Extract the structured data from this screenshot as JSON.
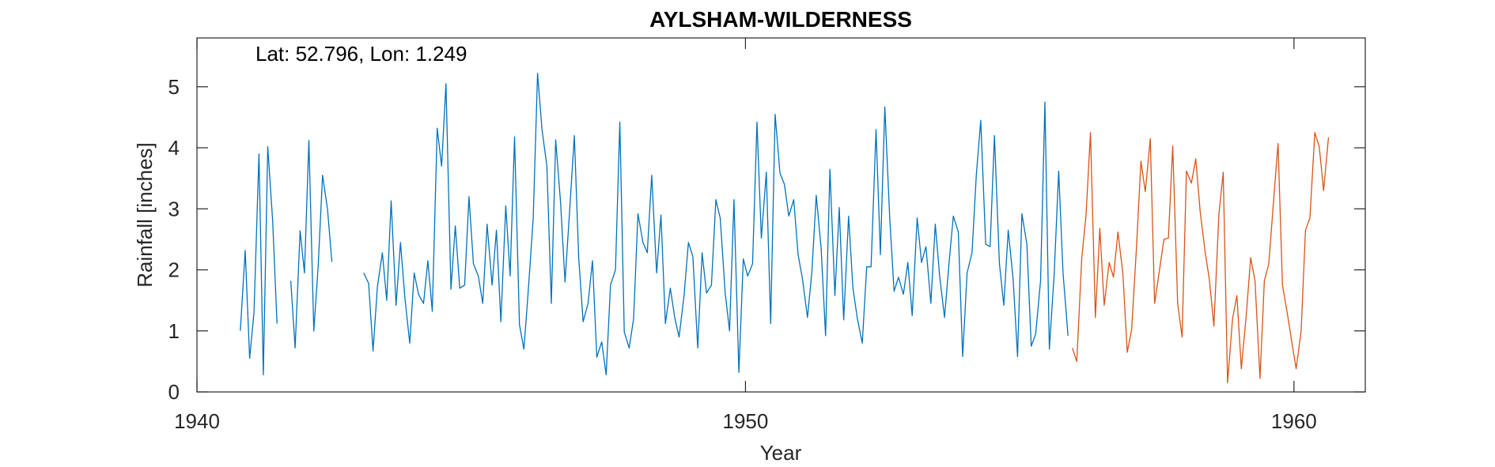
{
  "chart_data": {
    "type": "line",
    "title": "AYLSHAM-WILDERNESS",
    "annotation": "Lat: 52.796, Lon: 1.249",
    "xlabel": "Year",
    "ylabel": "Rainfall [inches]",
    "xlim": [
      1940,
      1961.3
    ],
    "ylim": [
      0,
      5.8
    ],
    "xticks": [
      1940,
      1950,
      1960
    ],
    "yticks": [
      0,
      1,
      2,
      3,
      4,
      5
    ],
    "grid": false,
    "series": [
      {
        "color": "#0072BD",
        "segments": [
          [
            [
              1940.79,
              1.0
            ],
            [
              1940.88,
              2.32
            ],
            [
              1940.96,
              0.55
            ],
            [
              1941.04,
              1.3
            ],
            [
              1941.13,
              3.9
            ],
            [
              1941.21,
              0.28
            ],
            [
              1941.29,
              4.02
            ],
            [
              1941.38,
              2.8
            ],
            [
              1941.46,
              1.12
            ]
          ],
          [
            [
              1941.71,
              1.82
            ],
            [
              1941.79,
              0.72
            ],
            [
              1941.88,
              2.64
            ],
            [
              1941.96,
              1.95
            ],
            [
              1942.04,
              4.12
            ],
            [
              1942.13,
              1.0
            ],
            [
              1942.21,
              2.05
            ],
            [
              1942.29,
              3.55
            ],
            [
              1942.38,
              3.0
            ],
            [
              1942.46,
              2.13
            ]
          ],
          [
            [
              1943.04,
              1.95
            ],
            [
              1943.13,
              1.78
            ],
            [
              1943.21,
              0.67
            ],
            [
              1943.29,
              1.72
            ],
            [
              1943.38,
              2.28
            ],
            [
              1943.46,
              1.5
            ],
            [
              1943.54,
              3.13
            ],
            [
              1943.63,
              1.42
            ],
            [
              1943.71,
              2.45
            ],
            [
              1943.79,
              1.55
            ],
            [
              1943.88,
              0.8
            ],
            [
              1943.96,
              1.95
            ],
            [
              1944.04,
              1.6
            ],
            [
              1944.13,
              1.45
            ],
            [
              1944.21,
              2.15
            ],
            [
              1944.29,
              1.32
            ],
            [
              1944.38,
              4.32
            ],
            [
              1944.46,
              3.7
            ],
            [
              1944.54,
              5.05
            ],
            [
              1944.63,
              1.68
            ],
            [
              1944.71,
              2.72
            ],
            [
              1944.79,
              1.7
            ],
            [
              1944.88,
              1.75
            ],
            [
              1944.96,
              3.2
            ],
            [
              1945.04,
              2.1
            ],
            [
              1945.13,
              1.9
            ],
            [
              1945.21,
              1.45
            ],
            [
              1945.29,
              2.75
            ],
            [
              1945.38,
              1.75
            ],
            [
              1945.46,
              2.65
            ],
            [
              1945.54,
              1.15
            ],
            [
              1945.63,
              3.05
            ],
            [
              1945.71,
              1.9
            ],
            [
              1945.79,
              4.18
            ],
            [
              1945.88,
              1.1
            ],
            [
              1945.96,
              0.7
            ],
            [
              1946.04,
              1.65
            ],
            [
              1946.13,
              2.85
            ],
            [
              1946.21,
              5.22
            ],
            [
              1946.29,
              4.3
            ],
            [
              1946.38,
              3.7
            ],
            [
              1946.46,
              1.45
            ],
            [
              1946.54,
              4.13
            ],
            [
              1946.63,
              3.1
            ],
            [
              1946.71,
              1.8
            ],
            [
              1946.79,
              2.9
            ],
            [
              1946.88,
              4.2
            ],
            [
              1946.96,
              2.2
            ],
            [
              1947.04,
              1.15
            ],
            [
              1947.13,
              1.45
            ],
            [
              1947.21,
              2.15
            ],
            [
              1947.29,
              0.57
            ],
            [
              1947.38,
              0.82
            ],
            [
              1947.46,
              0.28
            ],
            [
              1947.54,
              1.75
            ],
            [
              1947.63,
              2.0
            ],
            [
              1947.71,
              4.42
            ],
            [
              1947.79,
              0.98
            ],
            [
              1947.88,
              0.72
            ],
            [
              1947.96,
              1.2
            ],
            [
              1948.04,
              2.92
            ],
            [
              1948.13,
              2.45
            ],
            [
              1948.21,
              2.28
            ],
            [
              1948.29,
              3.55
            ],
            [
              1948.38,
              1.95
            ],
            [
              1948.46,
              2.9
            ],
            [
              1948.54,
              1.12
            ],
            [
              1948.63,
              1.7
            ],
            [
              1948.71,
              1.22
            ],
            [
              1948.79,
              0.9
            ],
            [
              1948.88,
              1.58
            ],
            [
              1948.96,
              2.45
            ],
            [
              1949.04,
              2.22
            ],
            [
              1949.13,
              0.72
            ],
            [
              1949.21,
              2.28
            ],
            [
              1949.29,
              1.62
            ],
            [
              1949.38,
              1.75
            ],
            [
              1949.46,
              3.15
            ],
            [
              1949.54,
              2.85
            ],
            [
              1949.63,
              1.62
            ],
            [
              1949.71,
              1.0
            ],
            [
              1949.79,
              3.15
            ],
            [
              1949.88,
              0.32
            ],
            [
              1949.96,
              2.18
            ],
            [
              1950.04,
              1.9
            ],
            [
              1950.13,
              2.1
            ],
            [
              1950.21,
              4.42
            ],
            [
              1950.29,
              2.52
            ],
            [
              1950.38,
              3.6
            ],
            [
              1950.46,
              1.12
            ],
            [
              1950.54,
              4.55
            ],
            [
              1950.63,
              3.58
            ],
            [
              1950.71,
              3.4
            ],
            [
              1950.79,
              2.88
            ],
            [
              1950.88,
              3.15
            ],
            [
              1950.96,
              2.25
            ],
            [
              1951.04,
              1.85
            ],
            [
              1951.13,
              1.22
            ],
            [
              1951.21,
              1.95
            ],
            [
              1951.29,
              3.22
            ],
            [
              1951.38,
              2.35
            ],
            [
              1951.46,
              0.92
            ],
            [
              1951.54,
              3.65
            ],
            [
              1951.63,
              1.58
            ],
            [
              1951.71,
              3.02
            ],
            [
              1951.79,
              1.18
            ],
            [
              1951.88,
              2.88
            ],
            [
              1951.96,
              1.7
            ],
            [
              1952.04,
              1.2
            ],
            [
              1952.13,
              0.8
            ],
            [
              1952.21,
              2.05
            ],
            [
              1952.29,
              2.05
            ],
            [
              1952.38,
              4.3
            ],
            [
              1952.46,
              2.25
            ],
            [
              1952.54,
              4.67
            ],
            [
              1952.63,
              2.85
            ],
            [
              1952.71,
              1.65
            ],
            [
              1952.79,
              1.88
            ],
            [
              1952.88,
              1.6
            ],
            [
              1952.96,
              2.12
            ],
            [
              1953.04,
              1.25
            ],
            [
              1953.13,
              2.85
            ],
            [
              1953.21,
              2.12
            ],
            [
              1953.29,
              2.38
            ],
            [
              1953.38,
              1.45
            ],
            [
              1953.46,
              2.75
            ],
            [
              1953.54,
              1.9
            ],
            [
              1953.63,
              1.22
            ],
            [
              1953.71,
              2.1
            ],
            [
              1953.79,
              2.88
            ],
            [
              1953.88,
              2.62
            ],
            [
              1953.96,
              0.58
            ],
            [
              1954.04,
              1.95
            ],
            [
              1954.13,
              2.28
            ],
            [
              1954.21,
              3.58
            ],
            [
              1954.29,
              4.45
            ],
            [
              1954.38,
              2.42
            ],
            [
              1954.46,
              2.38
            ],
            [
              1954.54,
              4.2
            ],
            [
              1954.63,
              2.1
            ],
            [
              1954.71,
              1.42
            ],
            [
              1954.79,
              2.65
            ],
            [
              1954.88,
              1.85
            ],
            [
              1954.96,
              0.58
            ],
            [
              1955.04,
              2.92
            ],
            [
              1955.13,
              2.42
            ],
            [
              1955.21,
              0.75
            ],
            [
              1955.29,
              0.95
            ],
            [
              1955.38,
              1.82
            ],
            [
              1955.46,
              4.75
            ],
            [
              1955.54,
              0.7
            ],
            [
              1955.63,
              1.95
            ],
            [
              1955.71,
              3.62
            ],
            [
              1955.79,
              1.95
            ],
            [
              1955.88,
              0.92
            ]
          ]
        ]
      },
      {
        "color": "#D95319",
        "segments": [
          [
            [
              1955.96,
              0.72
            ],
            [
              1956.04,
              0.5
            ],
            [
              1956.13,
              2.18
            ],
            [
              1956.21,
              2.9
            ],
            [
              1956.29,
              4.25
            ],
            [
              1956.38,
              1.22
            ],
            [
              1956.46,
              2.68
            ],
            [
              1956.54,
              1.42
            ],
            [
              1956.63,
              2.12
            ],
            [
              1956.71,
              1.88
            ],
            [
              1956.79,
              2.62
            ],
            [
              1956.88,
              1.95
            ],
            [
              1956.96,
              0.65
            ],
            [
              1957.04,
              1.02
            ],
            [
              1957.13,
              2.38
            ],
            [
              1957.21,
              3.78
            ],
            [
              1957.29,
              3.28
            ],
            [
              1957.38,
              4.15
            ],
            [
              1957.46,
              1.45
            ],
            [
              1957.54,
              1.95
            ],
            [
              1957.63,
              2.5
            ],
            [
              1957.71,
              2.52
            ],
            [
              1957.79,
              4.03
            ],
            [
              1957.88,
              1.45
            ],
            [
              1957.96,
              0.9
            ],
            [
              1958.04,
              3.62
            ],
            [
              1958.13,
              3.42
            ],
            [
              1958.21,
              3.82
            ],
            [
              1958.29,
              2.95
            ],
            [
              1958.38,
              2.3
            ],
            [
              1958.46,
              1.82
            ],
            [
              1958.54,
              1.08
            ],
            [
              1958.63,
              2.9
            ],
            [
              1958.71,
              3.6
            ],
            [
              1958.79,
              0.15
            ],
            [
              1958.88,
              1.2
            ],
            [
              1958.96,
              1.58
            ],
            [
              1959.04,
              0.38
            ],
            [
              1959.13,
              1.25
            ],
            [
              1959.21,
              2.2
            ],
            [
              1959.29,
              1.82
            ],
            [
              1959.38,
              0.22
            ],
            [
              1959.46,
              1.82
            ],
            [
              1959.54,
              2.1
            ],
            [
              1959.63,
              3.15
            ],
            [
              1959.71,
              4.07
            ],
            [
              1959.79,
              1.75
            ],
            [
              1959.88,
              1.28
            ],
            [
              1959.96,
              0.82
            ],
            [
              1960.04,
              0.38
            ],
            [
              1960.13,
              1.0
            ],
            [
              1960.21,
              2.65
            ],
            [
              1960.29,
              2.85
            ],
            [
              1960.38,
              4.25
            ],
            [
              1960.46,
              4.02
            ],
            [
              1960.54,
              3.3
            ],
            [
              1960.63,
              4.17
            ]
          ]
        ]
      }
    ]
  }
}
